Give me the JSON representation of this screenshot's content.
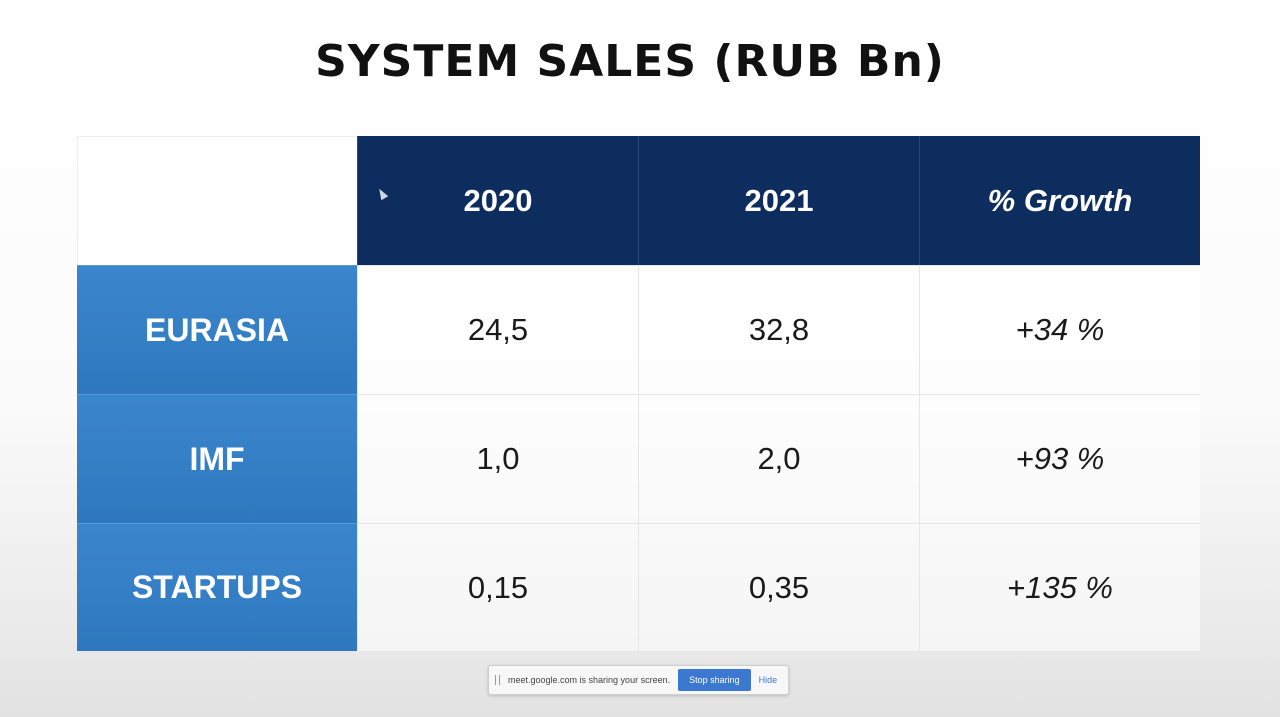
{
  "slide": {
    "title": "SYSTEM SALES (RUB Bn)"
  },
  "table": {
    "headers": [
      "",
      "2020",
      "2021",
      "% Growth"
    ],
    "rows": [
      {
        "label": "EURASIA",
        "y2020": "24,5",
        "y2021": "32,8",
        "growth": "+34 %"
      },
      {
        "label": "IMF",
        "y2020": "1,0",
        "y2021": "2,0",
        "growth": "+93 %"
      },
      {
        "label": "STARTUPS",
        "y2020": "0,15",
        "y2021": "0,35",
        "growth": "+135 %"
      }
    ]
  },
  "share_bar": {
    "message": "meet.google.com is sharing your screen.",
    "stop_label": "Stop sharing",
    "hide_label": "Hide"
  },
  "colors": {
    "header_bg": "#0d2d5f",
    "row_label_bg": "#3380c6"
  }
}
